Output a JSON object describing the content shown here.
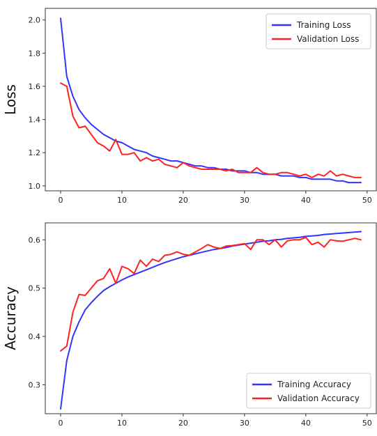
{
  "chart_data": [
    {
      "type": "line",
      "title": "",
      "xlabel": "",
      "ylabel": "Loss",
      "xlim": [
        -2.5,
        51.5
      ],
      "ylim": [
        0.97,
        2.07
      ],
      "xticks": [
        0,
        10,
        20,
        30,
        40,
        50
      ],
      "yticks": [
        1.0,
        1.2,
        1.4,
        1.6,
        1.8,
        2.0
      ],
      "ytick_labels": [
        "1.0",
        "1.2",
        "1.4",
        "1.6",
        "1.8",
        "2.0"
      ],
      "legend": "top-right",
      "grid": false,
      "series": [
        {
          "name": "Training Loss",
          "color": "#3333ff",
          "x": [
            0,
            1,
            2,
            3,
            4,
            5,
            6,
            7,
            8,
            9,
            10,
            11,
            12,
            13,
            14,
            15,
            16,
            17,
            18,
            19,
            20,
            21,
            22,
            23,
            24,
            25,
            26,
            27,
            28,
            29,
            30,
            31,
            32,
            33,
            34,
            35,
            36,
            37,
            38,
            39,
            40,
            41,
            42,
            43,
            44,
            45,
            46,
            47,
            48,
            49
          ],
          "values": [
            2.01,
            1.66,
            1.54,
            1.46,
            1.41,
            1.37,
            1.34,
            1.31,
            1.29,
            1.27,
            1.26,
            1.24,
            1.22,
            1.21,
            1.2,
            1.18,
            1.17,
            1.16,
            1.15,
            1.15,
            1.14,
            1.13,
            1.12,
            1.12,
            1.11,
            1.11,
            1.1,
            1.1,
            1.09,
            1.09,
            1.09,
            1.08,
            1.08,
            1.07,
            1.07,
            1.07,
            1.06,
            1.06,
            1.06,
            1.05,
            1.05,
            1.04,
            1.04,
            1.04,
            1.04,
            1.03,
            1.03,
            1.02,
            1.02,
            1.02
          ]
        },
        {
          "name": "Validation Loss",
          "color": "#ff2222",
          "x": [
            0,
            1,
            2,
            3,
            4,
            5,
            6,
            7,
            8,
            9,
            10,
            11,
            12,
            13,
            14,
            15,
            16,
            17,
            18,
            19,
            20,
            21,
            22,
            23,
            24,
            25,
            26,
            27,
            28,
            29,
            30,
            31,
            32,
            33,
            34,
            35,
            36,
            37,
            38,
            39,
            40,
            41,
            42,
            43,
            44,
            45,
            46,
            47,
            48,
            49
          ],
          "values": [
            1.62,
            1.6,
            1.42,
            1.35,
            1.36,
            1.31,
            1.26,
            1.24,
            1.21,
            1.28,
            1.19,
            1.19,
            1.2,
            1.15,
            1.17,
            1.15,
            1.16,
            1.13,
            1.12,
            1.11,
            1.14,
            1.12,
            1.11,
            1.1,
            1.1,
            1.1,
            1.1,
            1.09,
            1.1,
            1.08,
            1.08,
            1.08,
            1.11,
            1.08,
            1.07,
            1.07,
            1.08,
            1.08,
            1.07,
            1.06,
            1.07,
            1.05,
            1.07,
            1.06,
            1.09,
            1.06,
            1.07,
            1.06,
            1.05,
            1.05
          ]
        }
      ]
    },
    {
      "type": "line",
      "title": "",
      "xlabel": "",
      "ylabel": "Accuracy",
      "xlim": [
        -2.5,
        51.5
      ],
      "ylim": [
        0.24,
        0.635
      ],
      "xticks": [
        0,
        10,
        20,
        30,
        40,
        50
      ],
      "yticks": [
        0.3,
        0.4,
        0.5,
        0.6
      ],
      "ytick_labels": [
        "0.3",
        "0.4",
        "0.5",
        "0.6"
      ],
      "legend": "bottom-right",
      "grid": false,
      "series": [
        {
          "name": "Training Accuracy",
          "color": "#3333ff",
          "x": [
            0,
            1,
            2,
            3,
            4,
            5,
            6,
            7,
            8,
            9,
            10,
            11,
            12,
            13,
            14,
            15,
            16,
            17,
            18,
            19,
            20,
            21,
            22,
            23,
            24,
            25,
            26,
            27,
            28,
            29,
            30,
            31,
            32,
            33,
            34,
            35,
            36,
            37,
            38,
            39,
            40,
            41,
            42,
            43,
            44,
            45,
            46,
            47,
            48,
            49
          ],
          "values": [
            0.25,
            0.35,
            0.4,
            0.43,
            0.455,
            0.47,
            0.483,
            0.495,
            0.503,
            0.51,
            0.517,
            0.523,
            0.528,
            0.533,
            0.538,
            0.543,
            0.548,
            0.553,
            0.557,
            0.561,
            0.565,
            0.568,
            0.571,
            0.574,
            0.577,
            0.58,
            0.582,
            0.584,
            0.587,
            0.589,
            0.591,
            0.593,
            0.595,
            0.597,
            0.598,
            0.6,
            0.601,
            0.603,
            0.604,
            0.605,
            0.607,
            0.608,
            0.609,
            0.611,
            0.612,
            0.613,
            0.614,
            0.615,
            0.616,
            0.617
          ]
        },
        {
          "name": "Validation Accuracy",
          "color": "#ff2222",
          "x": [
            0,
            1,
            2,
            3,
            4,
            5,
            6,
            7,
            8,
            9,
            10,
            11,
            12,
            13,
            14,
            15,
            16,
            17,
            18,
            19,
            20,
            21,
            22,
            23,
            24,
            25,
            26,
            27,
            28,
            29,
            30,
            31,
            32,
            33,
            34,
            35,
            36,
            37,
            38,
            39,
            40,
            41,
            42,
            43,
            44,
            45,
            46,
            47,
            48,
            49
          ],
          "values": [
            0.37,
            0.38,
            0.45,
            0.487,
            0.485,
            0.5,
            0.515,
            0.52,
            0.54,
            0.51,
            0.545,
            0.54,
            0.53,
            0.558,
            0.545,
            0.56,
            0.555,
            0.568,
            0.57,
            0.575,
            0.57,
            0.568,
            0.575,
            0.582,
            0.59,
            0.585,
            0.582,
            0.587,
            0.588,
            0.59,
            0.592,
            0.58,
            0.6,
            0.6,
            0.59,
            0.6,
            0.585,
            0.598,
            0.6,
            0.6,
            0.605,
            0.59,
            0.595,
            0.585,
            0.6,
            0.598,
            0.597,
            0.6,
            0.603,
            0.6
          ]
        }
      ]
    }
  ]
}
